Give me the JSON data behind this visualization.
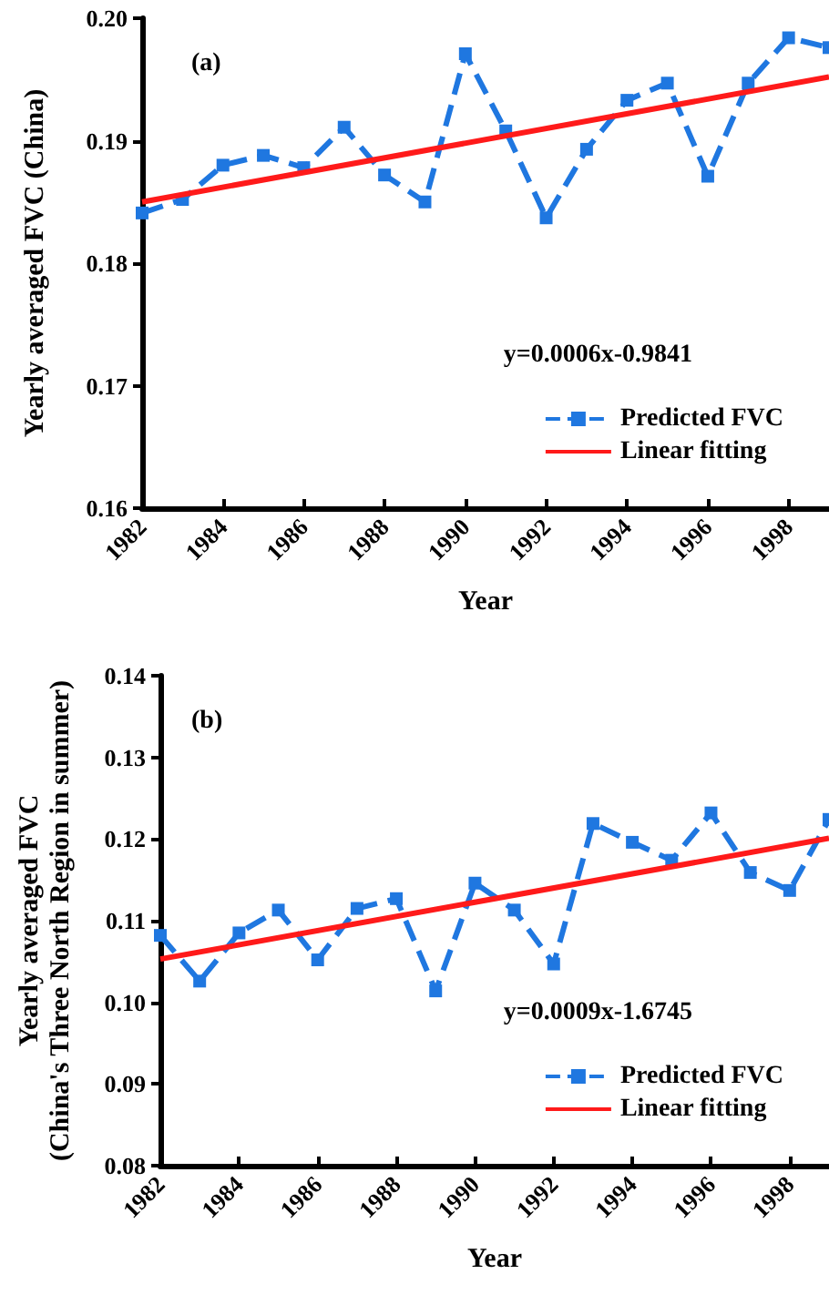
{
  "chart_data": [
    {
      "type": "line",
      "xlabel": "Year",
      "ylabel": "Yearly averaged FVC (China)",
      "annotations": [
        "(a)",
        "y=0.0006x-0.9841"
      ],
      "xlim": [
        1982,
        1999
      ],
      "xticks": [
        1982,
        1984,
        1986,
        1988,
        1990,
        1992,
        1994,
        1996,
        1998
      ],
      "ylim": [
        0.16,
        0.2
      ],
      "yticks": [
        0.16,
        0.17,
        0.18,
        0.19,
        {
          "value": 0.2,
          "label": "0.20"
        }
      ],
      "grid": false,
      "legend": "right",
      "series": [
        {
          "name": "Predicted FVC",
          "color": "#1f77e0",
          "marker": "square",
          "line_style": "dashed",
          "x": [
            1982,
            1983,
            1984,
            1985,
            1986,
            1987,
            1988,
            1989,
            1990,
            1991,
            1992,
            1993,
            1994,
            1995,
            1996,
            1997,
            1998,
            1999
          ],
          "values": [
            0.1841,
            0.1852,
            0.188,
            0.1888,
            0.1878,
            0.1911,
            0.1872,
            0.185,
            0.1971,
            0.1908,
            0.1837,
            0.1893,
            0.1933,
            0.1947,
            0.1871,
            0.1947,
            0.1984,
            0.1976
          ]
        },
        {
          "name": "Linear fitting",
          "color": "#ff1a1a",
          "marker": "none",
          "line_style": "solid",
          "x": [
            1982,
            1999
          ],
          "values": [
            0.185,
            0.1952
          ]
        }
      ]
    },
    {
      "type": "line",
      "xlabel": "Year",
      "ylabel": "Yearly averaged FVC\n(China's Three North Region in summer)",
      "annotations": [
        "(b)",
        "y=0.0009x-1.6745"
      ],
      "xlim": [
        1982,
        1999
      ],
      "xticks": [
        1982,
        1984,
        1986,
        1988,
        1990,
        1992,
        1994,
        1996,
        1998
      ],
      "ylim": [
        0.08,
        0.14
      ],
      "yticks": [
        0.08,
        0.09,
        {
          "value": 0.1,
          "label": "0.10"
        },
        0.11,
        0.12,
        0.13,
        0.14
      ],
      "grid": false,
      "legend": "right",
      "series": [
        {
          "name": "Predicted FVC",
          "color": "#1f77e0",
          "marker": "square",
          "line_style": "dashed",
          "x": [
            1982,
            1983,
            1984,
            1985,
            1986,
            1987,
            1988,
            1989,
            1990,
            1991,
            1992,
            1993,
            1994,
            1995,
            1996,
            1997,
            1998,
            1999
          ],
          "values": [
            0.1082,
            0.1026,
            0.1085,
            0.1113,
            0.1052,
            0.1115,
            0.1127,
            0.1014,
            0.1146,
            0.1113,
            0.1047,
            0.1219,
            0.1196,
            0.1174,
            0.1232,
            0.1159,
            0.1137,
            0.1224
          ]
        },
        {
          "name": "Linear fitting",
          "color": "#ff1a1a",
          "marker": "none",
          "line_style": "solid",
          "x": [
            1982,
            1999
          ],
          "values": [
            0.1053,
            0.1201
          ]
        }
      ]
    }
  ]
}
